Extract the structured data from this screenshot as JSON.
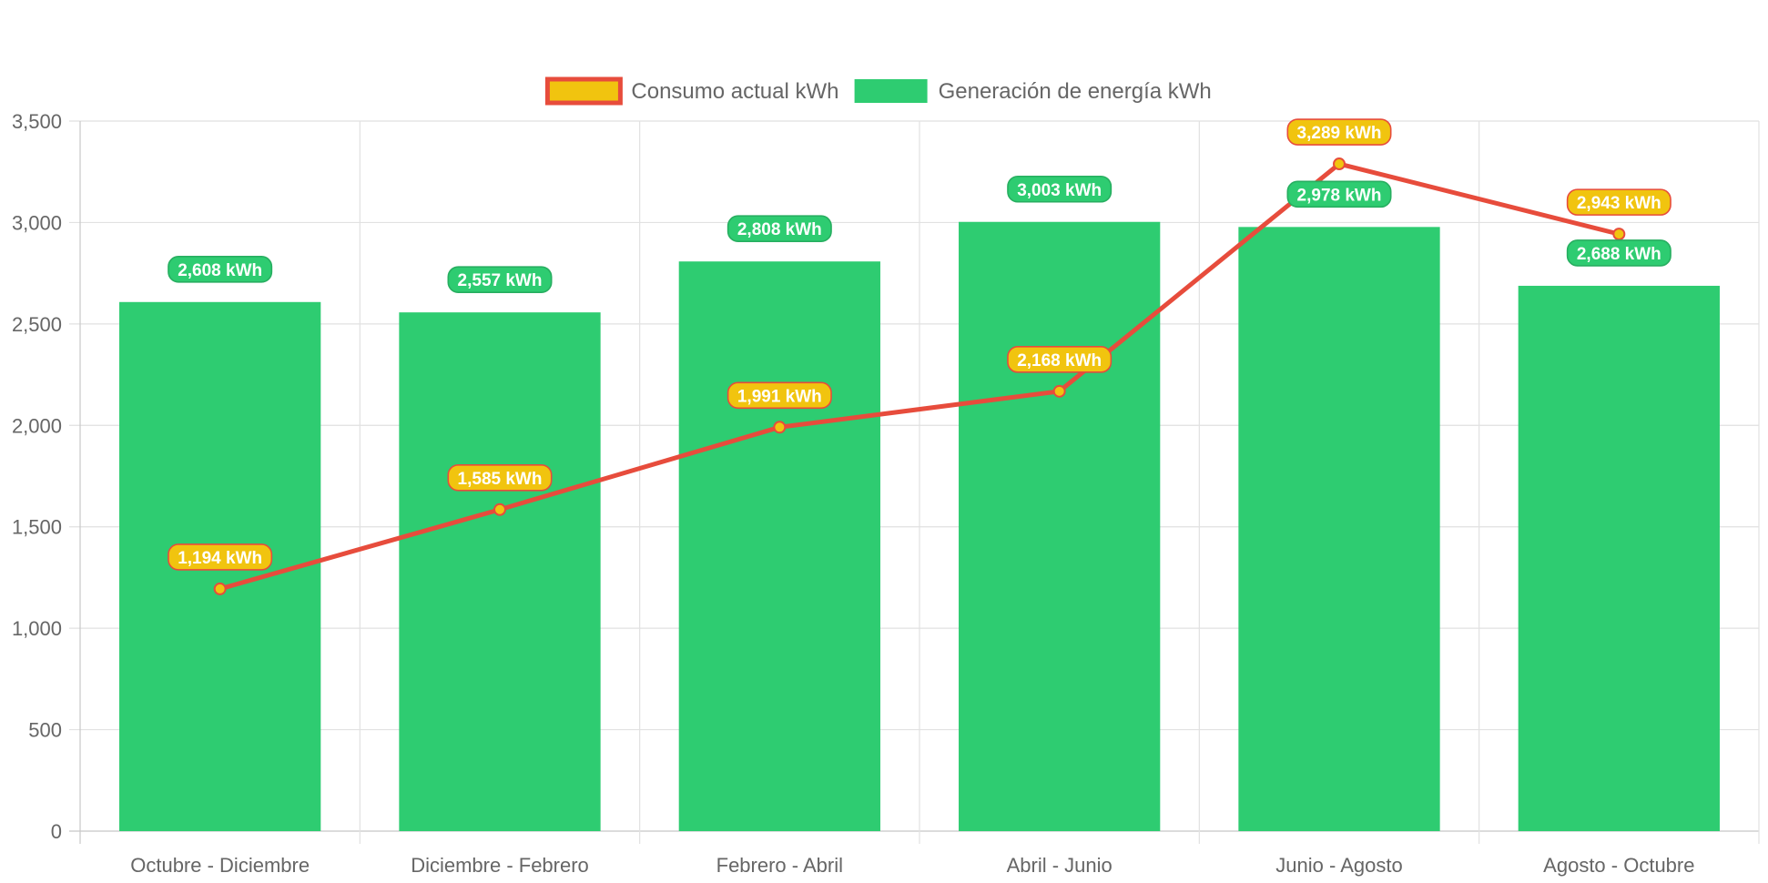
{
  "chart_data": {
    "type": "bar",
    "categories": [
      "Octubre - Diciembre",
      "Diciembre - Febrero",
      "Febrero - Abril",
      "Abril - Junio",
      "Junio - Agosto",
      "Agosto - Octubre"
    ],
    "ylim": [
      0,
      3500
    ],
    "y_ticks": [
      0,
      500,
      1000,
      1500,
      2000,
      2500,
      3000,
      3500
    ],
    "y_tick_labels": [
      "0",
      "500",
      "1,000",
      "1,500",
      "2,000",
      "2,500",
      "3,000",
      "3,500"
    ],
    "grid": true,
    "legend_position": "top-center",
    "series": [
      {
        "name": "Consumo actual kWh",
        "type": "line",
        "values": [
          1194,
          1585,
          1991,
          2168,
          3289,
          2943
        ],
        "labels": [
          "1,194 kWh",
          "1,585 kWh",
          "1,991 kWh",
          "2,168 kWh",
          "3,289 kWh",
          "2,943 kWh"
        ],
        "color": "#e74c3c",
        "fill_color": "#f1c40f"
      },
      {
        "name": "Generación de energía kWh",
        "type": "bar",
        "values": [
          2608,
          2557,
          2808,
          3003,
          2978,
          2688
        ],
        "labels": [
          "2,608 kWh",
          "2,557 kWh",
          "2,808 kWh",
          "3,003 kWh",
          "2,978 kWh",
          "2,688 kWh"
        ],
        "color": "#2ecc71",
        "label_border_color": "#27ae60"
      }
    ]
  }
}
